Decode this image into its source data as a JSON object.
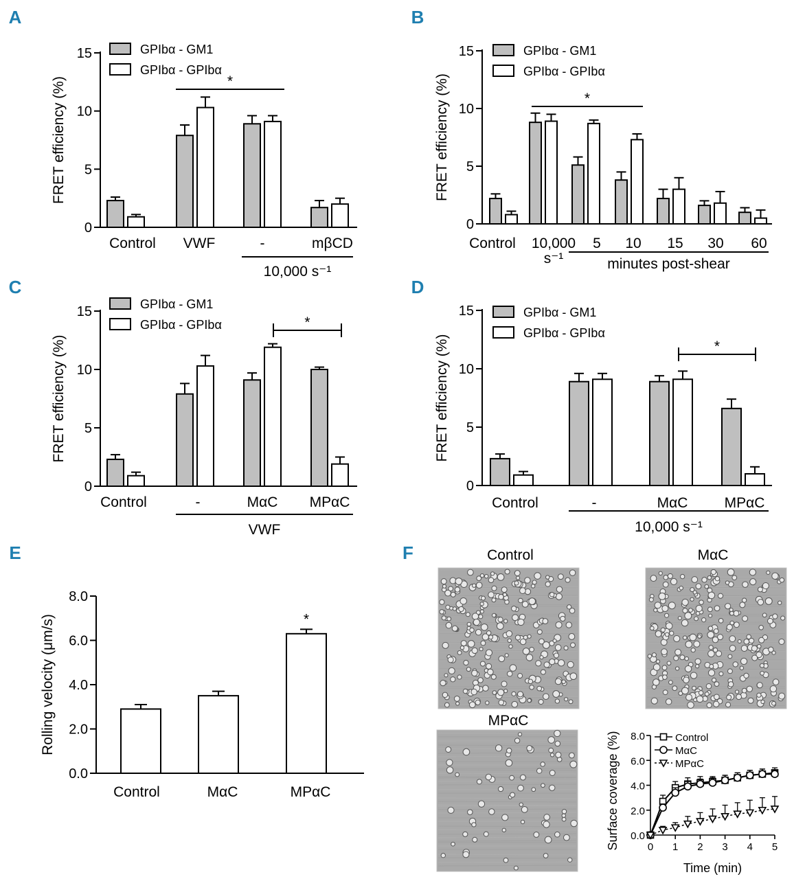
{
  "colors": {
    "panel_letter": "#1f7fb0",
    "bar_gray": "#bfbfbf",
    "bar_white": "#ffffff",
    "axis": "#000000",
    "micrograph_bg": "#a9a9a9",
    "cell": "#e8e8e8",
    "cell_edge": "#555555"
  },
  "chart_data": [
    {
      "panel": "A",
      "type": "bar",
      "ylabel": "FRET efficiency (%)",
      "ylim": [
        0,
        15
      ],
      "yticks": [
        "0",
        "5",
        "10",
        "15"
      ],
      "legend": [
        "GPIbα - GM1",
        "GPIbα - GPIbα"
      ],
      "categories": [
        "Control",
        "VWF",
        "-",
        "mβCD"
      ],
      "series": [
        {
          "name": "GPIbα - GM1",
          "values": [
            2.3,
            7.9,
            8.9,
            1.7
          ],
          "errors": [
            0.3,
            0.9,
            0.7,
            0.6
          ]
        },
        {
          "name": "GPIbα - GPIbα",
          "values": [
            0.9,
            10.3,
            9.1,
            2.0
          ],
          "errors": [
            0.2,
            0.9,
            0.5,
            0.5
          ]
        }
      ],
      "group_lines": [
        {
          "label": "10,000 s⁻¹",
          "from": 2,
          "to": 3
        }
      ],
      "significance": [
        {
          "label": "*",
          "from": 1,
          "to": 2,
          "style": "line"
        }
      ]
    },
    {
      "panel": "B",
      "type": "bar",
      "ylabel": "FRET efficiency (%)",
      "ylim": [
        0,
        15
      ],
      "yticks": [
        "0",
        "5",
        "10",
        "15"
      ],
      "legend": [
        "GPIbα - GM1",
        "GPIbα - GPIbα"
      ],
      "categories": [
        "Control",
        "10,000",
        "5",
        "10",
        "15",
        "30",
        "60"
      ],
      "category_sublabels": [
        "",
        "s⁻¹",
        "",
        "",
        "",
        "",
        ""
      ],
      "series": [
        {
          "name": "GPIbα - GM1",
          "values": [
            2.2,
            8.8,
            5.1,
            3.8,
            2.2,
            1.6,
            1.0
          ],
          "errors": [
            0.4,
            0.8,
            0.7,
            0.7,
            0.8,
            0.4,
            0.4
          ]
        },
        {
          "name": "GPIbα - GPIbα",
          "values": [
            0.8,
            8.9,
            8.7,
            7.3,
            3.0,
            1.8,
            0.5
          ],
          "errors": [
            0.3,
            0.6,
            0.3,
            0.5,
            1.0,
            1.0,
            0.7
          ]
        }
      ],
      "group_lines": [
        {
          "label": "minutes post-shear",
          "from": 2,
          "to": 6
        }
      ],
      "significance": [
        {
          "label": "*",
          "from": 1,
          "to": 3,
          "style": "line"
        }
      ]
    },
    {
      "panel": "C",
      "type": "bar",
      "ylabel": "FRET efficiency (%)",
      "ylim": [
        0,
        15
      ],
      "yticks": [
        "0",
        "5",
        "10",
        "15"
      ],
      "legend": [
        "GPIbα - GM1",
        "GPIbα - GPIbα"
      ],
      "categories": [
        "Control",
        "-",
        "MαC",
        "MPαC"
      ],
      "series": [
        {
          "name": "GPIbα - GM1",
          "values": [
            2.3,
            7.9,
            9.1,
            10.0
          ],
          "errors": [
            0.4,
            0.9,
            0.6,
            0.2
          ]
        },
        {
          "name": "GPIbα - GPIbα",
          "values": [
            0.9,
            10.3,
            11.9,
            1.9
          ],
          "errors": [
            0.3,
            0.9,
            0.3,
            0.6
          ]
        }
      ],
      "group_lines": [
        {
          "label": "VWF",
          "from": 1,
          "to": 3
        }
      ],
      "significance": [
        {
          "label": "*",
          "from": 2,
          "to": 3,
          "style": "bracket"
        }
      ]
    },
    {
      "panel": "D",
      "type": "bar",
      "ylabel": "FRET efficiency (%)",
      "ylim": [
        0,
        15
      ],
      "yticks": [
        "0",
        "5",
        "10",
        "15"
      ],
      "legend": [
        "GPIbα - GM1",
        "GPIbα - GPIbα"
      ],
      "categories": [
        "Control",
        "-",
        "MαC",
        "MPαC"
      ],
      "series": [
        {
          "name": "GPIbα - GM1",
          "values": [
            2.3,
            8.9,
            8.9,
            6.6
          ],
          "errors": [
            0.4,
            0.7,
            0.5,
            0.8
          ]
        },
        {
          "name": "GPIbα - GPIbα",
          "values": [
            0.9,
            9.1,
            9.1,
            1.0
          ],
          "errors": [
            0.3,
            0.5,
            0.7,
            0.6
          ]
        }
      ],
      "group_lines": [
        {
          "label": "10,000 s⁻¹",
          "from": 1,
          "to": 3
        }
      ],
      "significance": [
        {
          "label": "*",
          "from": 2,
          "to": 3,
          "style": "bracket"
        }
      ]
    },
    {
      "panel": "E",
      "type": "bar",
      "ylabel": "Rolling velocity (μm/s)",
      "ylim": [
        0,
        8
      ],
      "yticks": [
        "0.0",
        "2.0",
        "4.0",
        "6.0",
        "8.0"
      ],
      "categories": [
        "Control",
        "MαC",
        "MPαC"
      ],
      "values": [
        2.9,
        3.5,
        6.3
      ],
      "errors": [
        0.2,
        0.2,
        0.2
      ],
      "significance": [
        {
          "label": "*",
          "index": 2
        }
      ]
    },
    {
      "panel": "F",
      "type": "line",
      "xlabel": "Time (min)",
      "ylabel": "Surface coverage (%)",
      "xlim": [
        0,
        5
      ],
      "ylim": [
        0,
        8
      ],
      "xticks": [
        "0",
        "1",
        "2",
        "3",
        "4",
        "5"
      ],
      "yticks": [
        "0.0",
        "2.0",
        "4.0",
        "6.0",
        "8.0"
      ],
      "x": [
        0,
        0.5,
        1,
        1.5,
        2,
        2.5,
        3,
        3.5,
        4,
        4.5,
        5
      ],
      "series": [
        {
          "name": "Control",
          "marker": "square",
          "values": [
            0,
            2.7,
            3.8,
            4.1,
            4.2,
            4.3,
            4.4,
            4.6,
            4.8,
            4.9,
            5.0
          ],
          "errors": [
            0,
            0.5,
            0.5,
            0.5,
            0.5,
            0.4,
            0.4,
            0.4,
            0.4,
            0.4,
            0.4
          ]
        },
        {
          "name": "MαC",
          "marker": "circle",
          "values": [
            0,
            2.2,
            3.4,
            3.9,
            4.1,
            4.2,
            4.4,
            4.6,
            4.8,
            4.9,
            4.9
          ],
          "errors": [
            0,
            0.3,
            0.4,
            0.4,
            0.4,
            0.4,
            0.4,
            0.4,
            0.4,
            0.4,
            0.3
          ]
        },
        {
          "name": "MPαC",
          "marker": "triangle-down",
          "values": [
            0,
            0.4,
            0.6,
            0.9,
            1.1,
            1.3,
            1.5,
            1.7,
            1.8,
            2.0,
            2.1
          ],
          "errors": [
            0,
            0.3,
            0.4,
            0.6,
            0.7,
            0.8,
            0.9,
            0.9,
            1.0,
            1.0,
            1.0
          ]
        }
      ]
    }
  ],
  "micrographs": [
    {
      "label": "Control",
      "cell_density": "high"
    },
    {
      "label": "MαC",
      "cell_density": "high"
    },
    {
      "label": "MPαC",
      "cell_density": "low"
    }
  ],
  "panel_letters": [
    "A",
    "B",
    "C",
    "D",
    "E",
    "F"
  ]
}
